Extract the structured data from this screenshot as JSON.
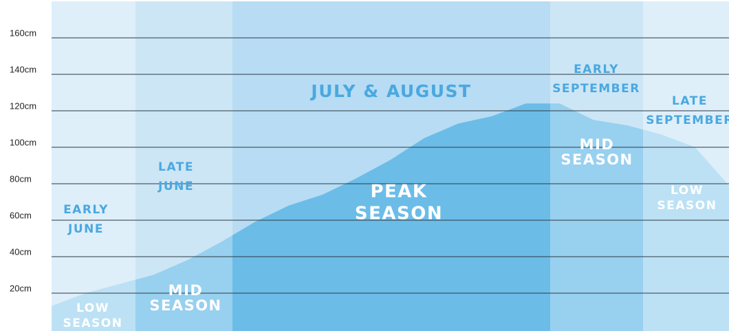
{
  "chart_data": {
    "type": "area",
    "ylim": [
      0,
      180
    ],
    "yticks": [
      {
        "value": 20,
        "label": "20cm"
      },
      {
        "value": 40,
        "label": "40cm"
      },
      {
        "value": 60,
        "label": "60cm"
      },
      {
        "value": 80,
        "label": "80cm"
      },
      {
        "value": 100,
        "label": "100cm"
      },
      {
        "value": 120,
        "label": "120cm"
      },
      {
        "value": 140,
        "label": "140cm"
      },
      {
        "value": 160,
        "label": "160cm"
      }
    ],
    "grid": true,
    "values": [
      13,
      20,
      25,
      30,
      38,
      48,
      59,
      68,
      74,
      83,
      93,
      105,
      113,
      117,
      124,
      124,
      115,
      112,
      107,
      100,
      79
    ],
    "color": "#6cbce8",
    "background": "#b7dcf3",
    "bands": [
      {
        "period": [
          "EARLY",
          "JUNE"
        ],
        "season": [
          "LOW",
          "SEASON"
        ]
      },
      {
        "period": [
          "LATE",
          "JUNE"
        ],
        "season": [
          "MID",
          "SEASON"
        ]
      },
      {
        "period": [
          "JULY & AUGUST"
        ],
        "season": [
          "PEAK",
          "SEASON"
        ]
      },
      {
        "period": [
          "EARLY",
          "SEPTEMBER"
        ],
        "season": [
          "MID",
          "SEASON"
        ]
      },
      {
        "period": [
          "LATE",
          "SEPTEMBER"
        ],
        "season": [
          "LOW",
          "SEASON"
        ]
      }
    ]
  }
}
